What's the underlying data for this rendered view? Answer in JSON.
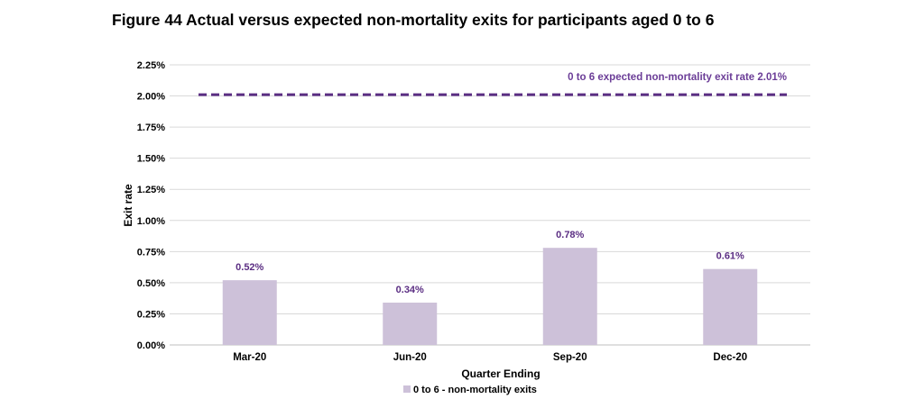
{
  "title": "Figure 44 Actual versus expected non-mortality exits for participants aged 0 to 6",
  "chart_data": {
    "type": "bar",
    "categories": [
      "Mar-20",
      "Jun-20",
      "Sep-20",
      "Dec-20"
    ],
    "series": [
      {
        "name": "0 to 6 - non-mortality exits",
        "values": [
          0.52,
          0.34,
          0.78,
          0.61
        ],
        "color": "#cdc1d9"
      }
    ],
    "data_labels": [
      "0.52%",
      "0.34%",
      "0.78%",
      "0.61%"
    ],
    "reference_line": {
      "value": 2.01,
      "label": "0 to 6 expected non-mortality exit rate 2.01%",
      "color": "#5b2e83",
      "style": "dashed"
    },
    "xlabel": "Quarter Ending",
    "ylabel": "Exit rate",
    "ylim": [
      0,
      2.25
    ],
    "yticks": [
      0,
      0.25,
      0.5,
      0.75,
      1.0,
      1.25,
      1.5,
      1.75,
      2.0,
      2.25
    ],
    "ytick_labels": [
      "0.00%",
      "0.25%",
      "0.50%",
      "0.75%",
      "1.00%",
      "1.25%",
      "1.50%",
      "1.75%",
      "2.00%",
      "2.25%"
    ],
    "grid": true,
    "gridline_color": "#d9d9d9",
    "label_color": "#5b2e83",
    "legend_position": "bottom"
  }
}
